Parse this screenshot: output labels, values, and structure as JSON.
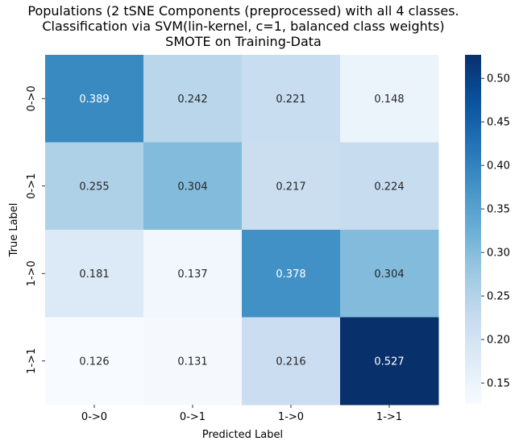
{
  "chart_data": {
    "type": "heatmap",
    "title": [
      "Populations (2 tSNE Components (preprocessed) with all 4 classes.",
      "Classification via SVM(lin-kernel, c=1, balanced class weights)",
      "SMOTE on Training-Data"
    ],
    "xlabel": "Predicted Label",
    "ylabel": "True Label",
    "x_categories": [
      "0->0",
      "0->1",
      "1->0",
      "1->1"
    ],
    "y_categories": [
      "0->0",
      "0->1",
      "1->0",
      "1->1"
    ],
    "values": [
      [
        0.389,
        0.242,
        0.221,
        0.148
      ],
      [
        0.255,
        0.304,
        0.217,
        0.224
      ],
      [
        0.181,
        0.137,
        0.378,
        0.304
      ],
      [
        0.126,
        0.131,
        0.216,
        0.527
      ]
    ],
    "colormap": "Blues",
    "color_range": [
      0.126,
      0.527
    ],
    "colorbar_ticks": [
      "0.15",
      "0.20",
      "0.25",
      "0.30",
      "0.35",
      "0.40",
      "0.45",
      "0.50"
    ],
    "colorbar_tick_values": [
      0.15,
      0.2,
      0.25,
      0.3,
      0.35,
      0.4,
      0.45,
      0.5
    ],
    "colors": {
      "low": "#f7fbff",
      "high": "#08306b"
    }
  }
}
